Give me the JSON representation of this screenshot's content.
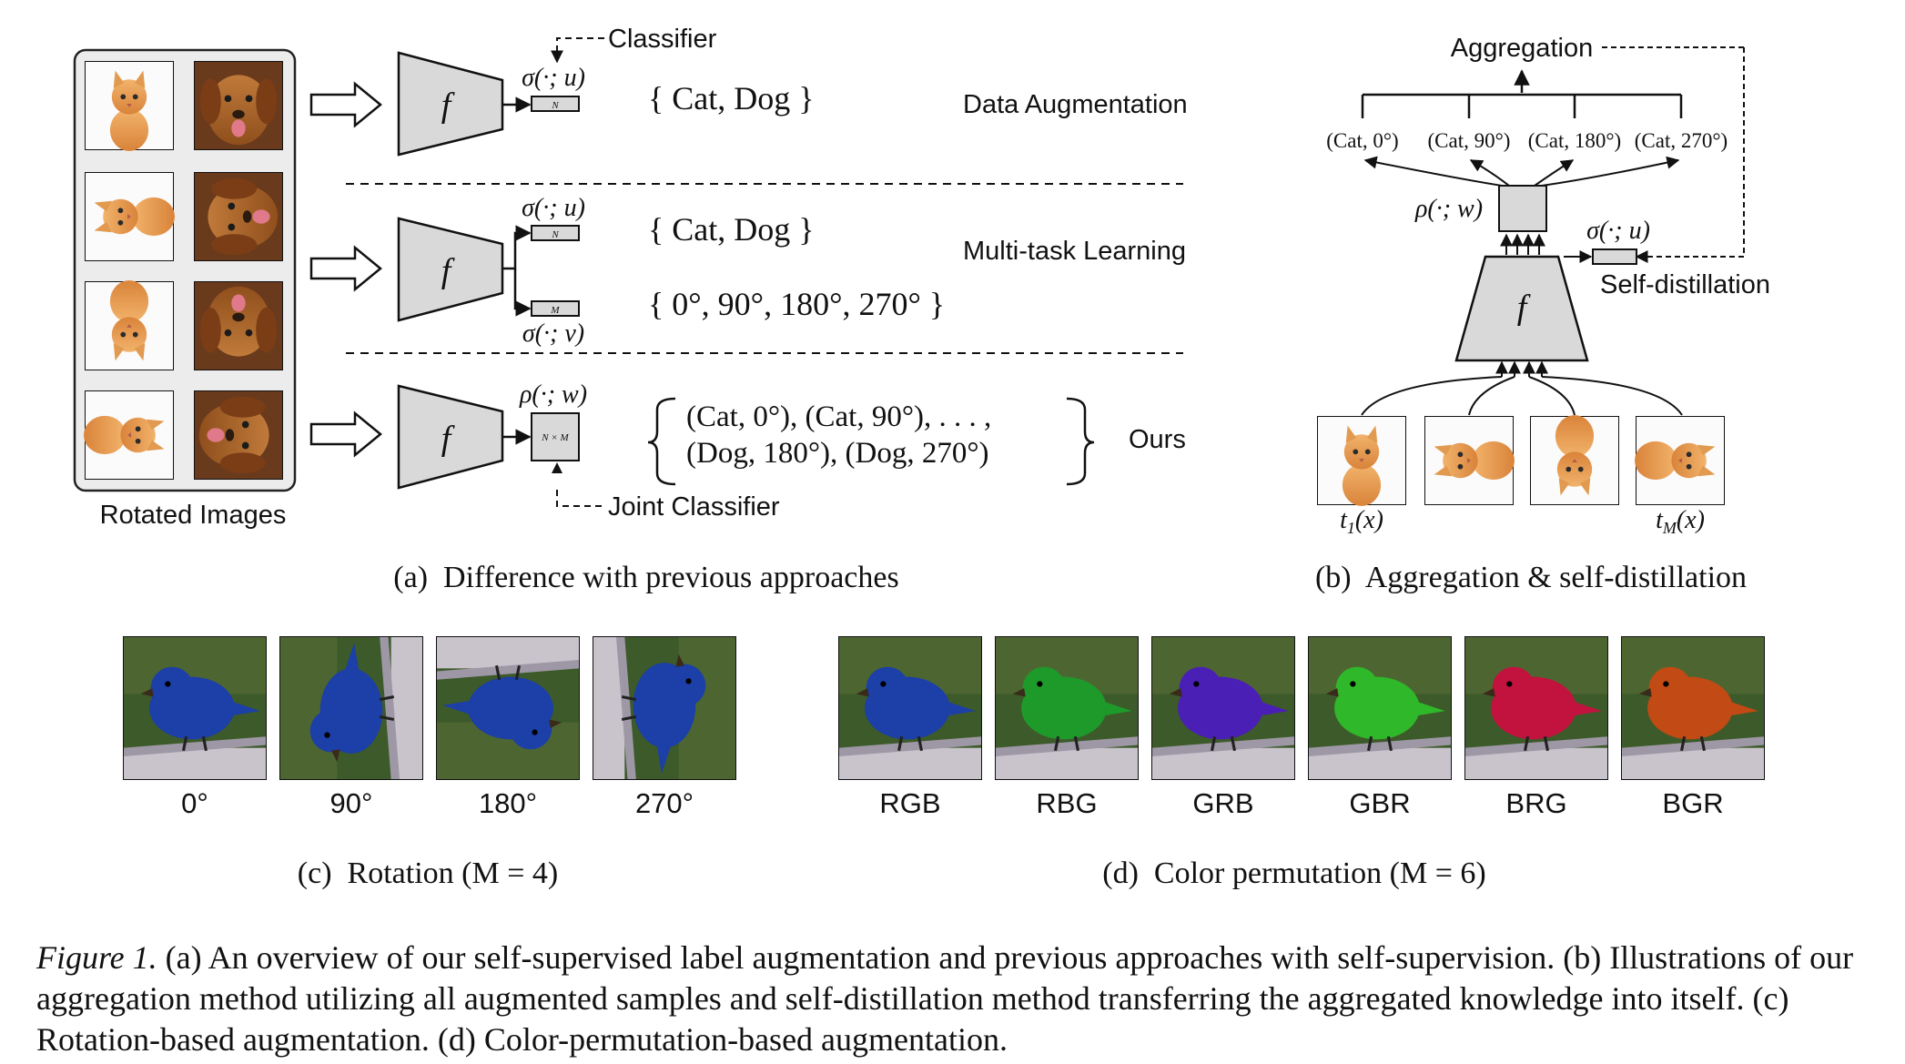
{
  "panel_a": {
    "rotated_images_label": "Rotated Images",
    "classifier_label": "Classifier",
    "joint_classifier_label": "Joint Classifier",
    "row1_label": "Data Augmentation",
    "row2_label": "Multi-task Learning",
    "row3_label": "Ours",
    "f_label": "f",
    "sigma_u": "σ(·; u)",
    "sigma_v": "σ(·; v)",
    "rho_w": "ρ(·; w)",
    "box_N": "N",
    "box_M": "M",
    "box_NxM": "N × M",
    "set1": "{ Cat, Dog }",
    "set2": "{ 0°, 90°, 180°, 270° }",
    "set3_line1": "(Cat, 0°), (Cat, 90°), . . . ,",
    "set3_line2": "(Dog, 180°), (Dog, 270°)",
    "subcaption": "(a)  Difference with previous approaches"
  },
  "panel_b": {
    "aggregation_label": "Aggregation",
    "self_distillation_label": "Self-distillation",
    "outputs": [
      "(Cat, 0°)",
      "(Cat, 90°)",
      "(Cat, 180°)",
      "(Cat, 270°)"
    ],
    "rho_w": "ρ(·; w)",
    "sigma_u": "σ(·; u)",
    "f_label": "f",
    "t1": "t",
    "t1_sub": "1",
    "tM": "t",
    "tM_sub": "M",
    "x_arg": "(x)",
    "subcaption": "(b)  Aggregation & self-distillation"
  },
  "panel_c": {
    "labels": [
      "0°",
      "90°",
      "180°",
      "270°"
    ],
    "subcaption": "(c)  Rotation (M = 4)"
  },
  "panel_d": {
    "labels": [
      "RGB",
      "RBG",
      "GRB",
      "GBR",
      "BRG",
      "BGR"
    ],
    "colors": [
      "#1c3fa8",
      "#1e9a2a",
      "#4a1fb5",
      "#2fb82a",
      "#c2123e",
      "#c24a14"
    ],
    "subcaption": "(d)  Color permutation (M = 6)"
  },
  "caption": {
    "figure_label": "Figure 1.",
    "text": " (a) An overview of our self-supervised label augmentation and previous approaches with self-supervision. (b) Illustrations of our aggregation method utilizing all augmented samples and self-distillation method transferring the aggregated knowledge into itself. (c) Rotation-based augmentation. (d) Color-permutation-based augmentation."
  }
}
